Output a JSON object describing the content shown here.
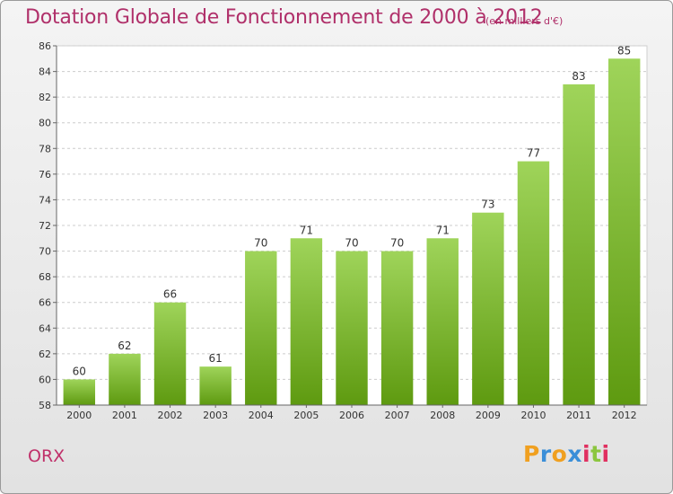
{
  "title": "Dotation Globale de Fonctionnement de 2000 à 2012",
  "unit_note": "(en milliers d'€)",
  "city": "ORX",
  "brand": {
    "logo_letters": [
      "P",
      "r",
      "o",
      "x",
      "i",
      "t",
      "i"
    ],
    "logo_colors": [
      "#f0a020",
      "#3a8ed8",
      "#f0a020",
      "#3a8ed8",
      "#e03060",
      "#8cc63f",
      "#e03060"
    ]
  },
  "colors": {
    "title": "#b0306a",
    "bar_top": "#9fd45a",
    "bar_bottom": "#5e9a10"
  },
  "chart_data": {
    "type": "bar",
    "title": "Dotation Globale de Fonctionnement de 2000 à 2012",
    "subtitle": "(en milliers d'€)",
    "categories": [
      "2000",
      "2001",
      "2002",
      "2003",
      "2004",
      "2005",
      "2006",
      "2007",
      "2008",
      "2009",
      "2010",
      "2011",
      "2012"
    ],
    "values": [
      60,
      62,
      66,
      61,
      70,
      71,
      70,
      70,
      71,
      73,
      77,
      83,
      85
    ],
    "ylim": [
      58,
      86
    ],
    "yticks": [
      58,
      60,
      62,
      64,
      66,
      68,
      70,
      72,
      74,
      76,
      78,
      80,
      82,
      84,
      86
    ],
    "xlabel": "",
    "ylabel": "",
    "grid": true
  }
}
